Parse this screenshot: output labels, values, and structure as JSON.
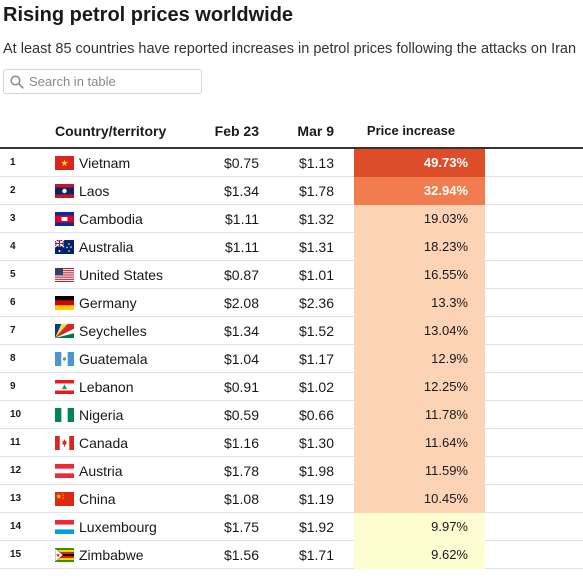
{
  "title": "Rising petrol prices worldwide",
  "subtitle": "At least 85 countries have reported increases in petrol prices following the attacks on Iran",
  "search": {
    "placeholder": "Search in table",
    "icon": "search-icon"
  },
  "columns": {
    "country": "Country/territory",
    "feb": "Feb 23",
    "mar": "Mar 9",
    "increase": "Price increase"
  },
  "colors": {
    "high": "#de4d2a",
    "medium": "#f07c4f",
    "mid": "#fdd3b5",
    "low": "#fefdd2",
    "header_rule": "#333333"
  },
  "chart_data": {
    "type": "table",
    "title": "Rising petrol prices worldwide",
    "subtitle": "At least 85 countries have reported increases in petrol prices following the attacks on Iran",
    "columns": [
      "Country/territory",
      "Feb 23",
      "Mar 9",
      "Price increase"
    ],
    "rows": [
      {
        "rank": "1",
        "country": "Vietnam",
        "flag": "vietnam-flag-icon",
        "feb": "$0.75",
        "mar": "$1.13",
        "increase": "49.73%",
        "value": 49.73,
        "level": "high"
      },
      {
        "rank": "2",
        "country": "Laos",
        "flag": "laos-flag-icon",
        "feb": "$1.34",
        "mar": "$1.78",
        "increase": "32.94%",
        "value": 32.94,
        "level": "medium"
      },
      {
        "rank": "3",
        "country": "Cambodia",
        "flag": "cambodia-flag-icon",
        "feb": "$1.11",
        "mar": "$1.32",
        "increase": "19.03%",
        "value": 19.03,
        "level": "mid"
      },
      {
        "rank": "4",
        "country": "Australia",
        "flag": "australia-flag-icon",
        "feb": "$1.11",
        "mar": "$1.31",
        "increase": "18.23%",
        "value": 18.23,
        "level": "mid"
      },
      {
        "rank": "5",
        "country": "United States",
        "flag": "united-states-flag-icon",
        "feb": "$0.87",
        "mar": "$1.01",
        "increase": "16.55%",
        "value": 16.55,
        "level": "mid"
      },
      {
        "rank": "6",
        "country": "Germany",
        "flag": "germany-flag-icon",
        "feb": "$2.08",
        "mar": "$2.36",
        "increase": "13.3%",
        "value": 13.3,
        "level": "mid"
      },
      {
        "rank": "7",
        "country": "Seychelles",
        "flag": "seychelles-flag-icon",
        "feb": "$1.34",
        "mar": "$1.52",
        "increase": "13.04%",
        "value": 13.04,
        "level": "mid"
      },
      {
        "rank": "8",
        "country": "Guatemala",
        "flag": "guatemala-flag-icon",
        "feb": "$1.04",
        "mar": "$1.17",
        "increase": "12.9%",
        "value": 12.9,
        "level": "mid"
      },
      {
        "rank": "9",
        "country": "Lebanon",
        "flag": "lebanon-flag-icon",
        "feb": "$0.91",
        "mar": "$1.02",
        "increase": "12.25%",
        "value": 12.25,
        "level": "mid"
      },
      {
        "rank": "10",
        "country": "Nigeria",
        "flag": "nigeria-flag-icon",
        "feb": "$0.59",
        "mar": "$0.66",
        "increase": "11.78%",
        "value": 11.78,
        "level": "mid"
      },
      {
        "rank": "11",
        "country": "Canada",
        "flag": "canada-flag-icon",
        "feb": "$1.16",
        "mar": "$1.30",
        "increase": "11.64%",
        "value": 11.64,
        "level": "mid"
      },
      {
        "rank": "12",
        "country": "Austria",
        "flag": "austria-flag-icon",
        "feb": "$1.78",
        "mar": "$1.98",
        "increase": "11.59%",
        "value": 11.59,
        "level": "mid"
      },
      {
        "rank": "13",
        "country": "China",
        "flag": "china-flag-icon",
        "feb": "$1.08",
        "mar": "$1.19",
        "increase": "10.45%",
        "value": 10.45,
        "level": "mid"
      },
      {
        "rank": "14",
        "country": "Luxembourg",
        "flag": "luxembourg-flag-icon",
        "feb": "$1.75",
        "mar": "$1.92",
        "increase": "9.97%",
        "value": 9.97,
        "level": "low"
      },
      {
        "rank": "15",
        "country": "Zimbabwe",
        "flag": "zimbabwe-flag-icon",
        "feb": "$1.56",
        "mar": "$1.71",
        "increase": "9.62%",
        "value": 9.62,
        "level": "low"
      }
    ]
  }
}
